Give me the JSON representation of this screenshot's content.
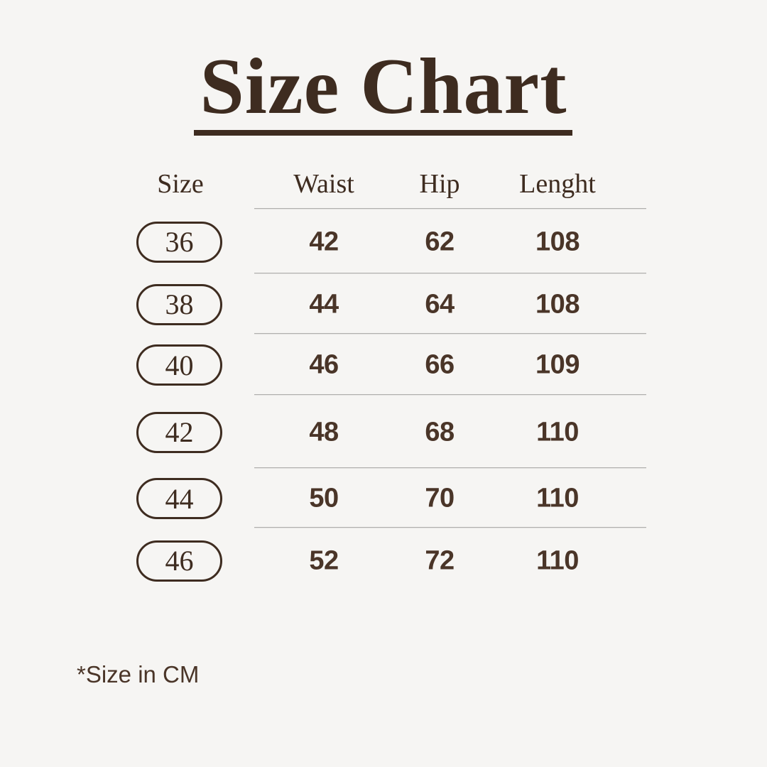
{
  "page": {
    "title": "Size Chart",
    "footnote": "*Size in CM"
  },
  "chart_data": {
    "type": "table",
    "title": "Size Chart",
    "columns": [
      "Size",
      "Waist",
      "Hip",
      "Lenght"
    ],
    "rows": [
      [
        "36",
        "42",
        "62",
        "108"
      ],
      [
        "38",
        "44",
        "64",
        "108"
      ],
      [
        "40",
        "46",
        "66",
        "109"
      ],
      [
        "42",
        "48",
        "68",
        "110"
      ],
      [
        "44",
        "50",
        "70",
        "110"
      ],
      [
        "46",
        "52",
        "72",
        "110"
      ]
    ],
    "note": "*Size in CM",
    "layout_hints": {
      "size_labels_style": "outlined pill",
      "dividers": "thin gray lines under header and between rows, spanning measurement columns only",
      "title_underline": true
    }
  },
  "colors": {
    "background": "#f6f5f3",
    "ink": "#3e2c20",
    "numbers": "#4a3528",
    "divider": "#b0afad"
  }
}
